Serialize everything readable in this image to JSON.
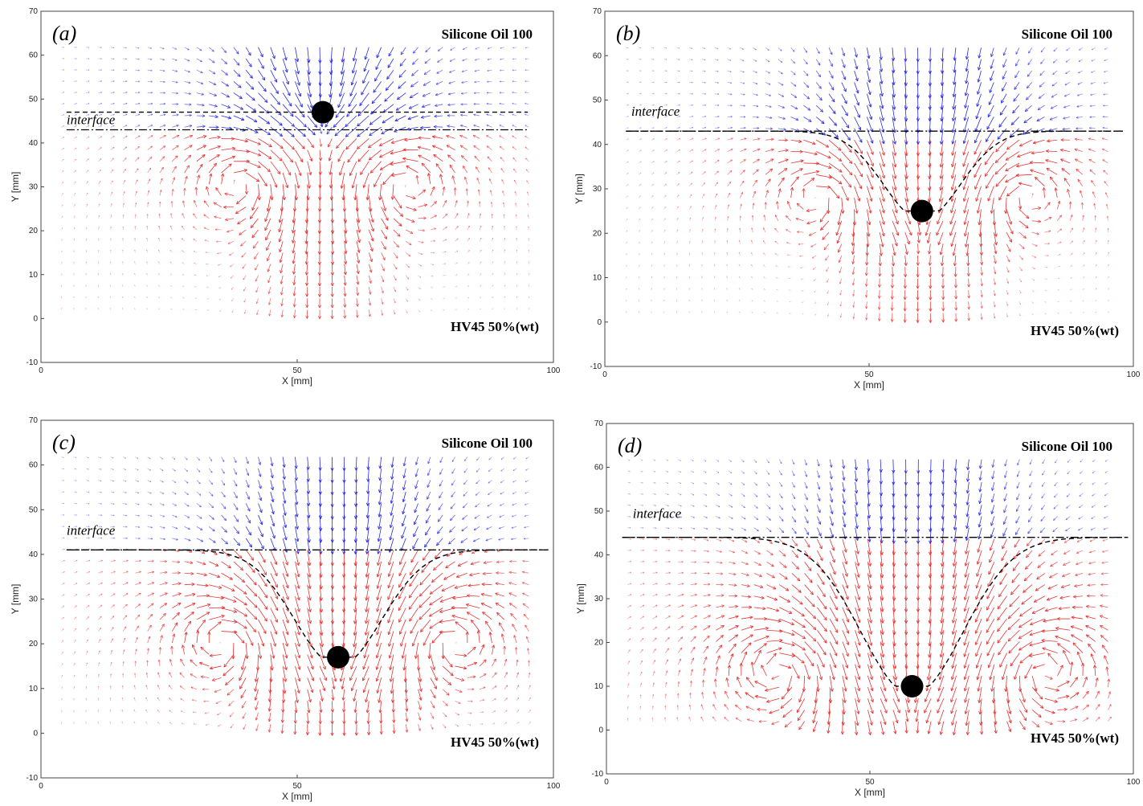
{
  "chart_data": [
    {
      "type": "quiver",
      "panel_label": "(a)",
      "xlabel": "X [mm]",
      "ylabel": "Y [mm]",
      "xlim": [
        0,
        100
      ],
      "ylim": [
        -10,
        70
      ],
      "xticks": [
        "0",
        "50",
        "100"
      ],
      "yticks": [
        "-10",
        "0",
        "10",
        "20",
        "30",
        "40",
        "50",
        "60",
        "70"
      ],
      "upper_fluid": "Silicone Oil 100",
      "lower_fluid": "HV45 50%(wt)",
      "interface_label": "interface",
      "sphere": {
        "x": 55,
        "y": 47
      },
      "interface_level": 43,
      "colors": {
        "upper": "#2a2ae6",
        "lower": "#e63232"
      }
    },
    {
      "type": "quiver",
      "panel_label": "(b)",
      "xlabel": "X [mm]",
      "ylabel": "Y [mm]",
      "xlim": [
        0,
        100
      ],
      "ylim": [
        -10,
        70
      ],
      "xticks": [
        "0",
        "50",
        "100"
      ],
      "yticks": [
        "-10",
        "0",
        "10",
        "20",
        "30",
        "40",
        "50",
        "60",
        "70"
      ],
      "upper_fluid": "Silicone Oil 100",
      "lower_fluid": "HV45 50%(wt)",
      "interface_label": "interface",
      "sphere": {
        "x": 60,
        "y": 25
      },
      "interface_level": 43,
      "colors": {
        "upper": "#2a2ae6",
        "lower": "#e63232"
      }
    },
    {
      "type": "quiver",
      "panel_label": "(c)",
      "xlabel": "X [mm]",
      "ylabel": "Y [mm]",
      "xlim": [
        0,
        100
      ],
      "ylim": [
        -10,
        70
      ],
      "xticks": [
        "0",
        "50",
        "100"
      ],
      "yticks": [
        "-10",
        "0",
        "10",
        "20",
        "30",
        "40",
        "50",
        "60",
        "70"
      ],
      "upper_fluid": "Silicone Oil 100",
      "lower_fluid": "HV45 50%(wt)",
      "interface_label": "interface",
      "sphere": {
        "x": 58,
        "y": 17
      },
      "interface_level": 41,
      "colors": {
        "upper": "#2a2ae6",
        "lower": "#e63232"
      }
    },
    {
      "type": "quiver",
      "panel_label": "(d)",
      "xlabel": "X [mm]",
      "ylabel": "Y [mm]",
      "xlim": [
        0,
        100
      ],
      "ylim": [
        -10,
        70
      ],
      "xticks": [
        "0",
        "50",
        "100"
      ],
      "yticks": [
        "-10",
        "0",
        "10",
        "20",
        "30",
        "40",
        "50",
        "60",
        "70"
      ],
      "upper_fluid": "Silicone Oil 100",
      "lower_fluid": "HV45 50%(wt)",
      "interface_label": "interface",
      "sphere": {
        "x": 58,
        "y": 10
      },
      "interface_level": 44,
      "colors": {
        "upper": "#2a2ae6",
        "lower": "#e63232"
      }
    }
  ]
}
